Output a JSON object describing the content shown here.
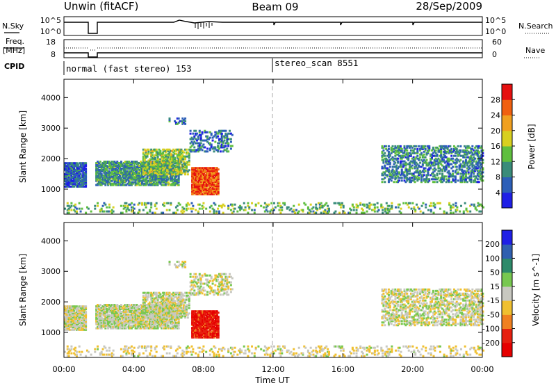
{
  "chart_data": {
    "type": "heatmap",
    "header": {
      "station": "Unwin (fitACF)",
      "beam": "Beam 09",
      "date": "28/Sep/2009"
    },
    "noise_panel": {
      "left_label": "N.Sky",
      "right_label": "N.Search",
      "left_ticks": [
        "10^5",
        "10^0"
      ],
      "right_ticks": [
        "10^5",
        "10^0"
      ]
    },
    "freq_panel": {
      "left_label_1": "Freq.",
      "left_label_2": "[MHz]",
      "left_ticks": [
        "18",
        "8"
      ],
      "right_label": "Nave",
      "right_ticks": [
        "60",
        "0"
      ]
    },
    "cpid_panel": {
      "label": "CPID",
      "modes": [
        {
          "name": "normal (fast stereo) 153",
          "start_hour": 0
        },
        {
          "name": "stereo_scan 8551",
          "start_hour": 12
        }
      ]
    },
    "x_axis": {
      "label": "Time UT",
      "range_hours": [
        0,
        24
      ],
      "ticks": [
        0,
        4,
        8,
        12,
        16,
        20,
        24
      ],
      "tick_labels": [
        "00:00",
        "04:00",
        "08:00",
        "12:00",
        "16:00",
        "20:00",
        "00:00"
      ]
    },
    "y_axis": {
      "label": "Slant Range [km]",
      "range_km": [
        180,
        4600
      ],
      "ticks": [
        1000,
        2000,
        3000,
        4000
      ],
      "tick_labels": [
        "1000",
        "2000",
        "3000",
        "4000"
      ]
    },
    "power_panel": {
      "colorbar_label": "Power [dB]",
      "colorbar_ticks": [
        "4",
        "8",
        "12",
        "16",
        "20",
        "24",
        "28"
      ],
      "colors": [
        "#1f1fe6",
        "#2d5fb8",
        "#3a8c7a",
        "#5fbf3f",
        "#d8d020",
        "#f0a020",
        "#f06010",
        "#e61010"
      ]
    },
    "velocity_panel": {
      "colorbar_label": "Velocity [m s^-1]",
      "colorbar_ticks": [
        "200",
        "100",
        "50",
        "15",
        "-15",
        "-50",
        "-100",
        "-200"
      ],
      "colors": [
        "#1f1fe6",
        "#3060b0",
        "#2e8a6a",
        "#78c850",
        "#c8c8c0",
        "#f0c030",
        "#f08020",
        "#e62010",
        "#e60000"
      ]
    },
    "scatter_regions": [
      {
        "t0": 0.0,
        "t1": 1.2,
        "r0": 1050,
        "r1": 1850,
        "density": 0.85,
        "power": 0.15,
        "vel": 0.5
      },
      {
        "t0": 1.8,
        "t1": 6.6,
        "r0": 1100,
        "r1": 1900,
        "density": 0.8,
        "power": 0.3,
        "vel": 0.48
      },
      {
        "t0": 4.5,
        "t1": 7.2,
        "r0": 1450,
        "r1": 2300,
        "density": 0.6,
        "power": 0.45,
        "vel": 0.5
      },
      {
        "t0": 7.2,
        "t1": 9.6,
        "r0": 2200,
        "r1": 2900,
        "density": 0.35,
        "power": 0.2,
        "vel": 0.5
      },
      {
        "t0": 7.3,
        "t1": 8.8,
        "r0": 800,
        "r1": 1700,
        "density": 0.95,
        "power": 0.9,
        "vel": 0.92
      },
      {
        "t0": 6.0,
        "t1": 7.0,
        "r0": 3100,
        "r1": 3300,
        "density": 0.3,
        "power": 0.2,
        "vel": 0.5
      },
      {
        "t0": 18.2,
        "t1": 24.0,
        "r0": 1200,
        "r1": 2400,
        "density": 0.45,
        "power": 0.25,
        "vel": 0.5
      },
      {
        "t0": 0.0,
        "t1": 24.0,
        "r0": 190,
        "r1": 520,
        "density": 0.18,
        "power": 0.4,
        "vel": 0.55
      }
    ]
  }
}
